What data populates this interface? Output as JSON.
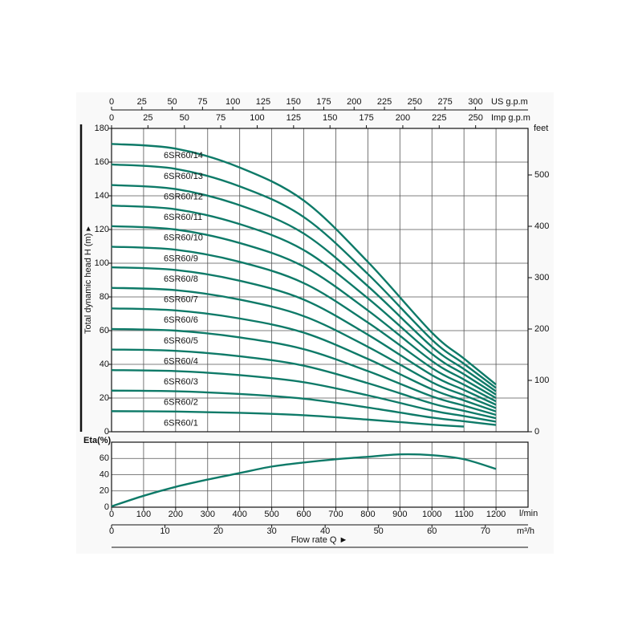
{
  "chart_data": [
    {
      "type": "line",
      "ylabel": "Total dynamic head H (m) ▸",
      "ylim": [
        0,
        180
      ],
      "yticks": [
        0,
        20,
        40,
        60,
        80,
        100,
        120,
        140,
        160,
        180
      ],
      "y2label": "feet",
      "y2lim": [
        0,
        590.6
      ],
      "y2ticks": [
        0,
        100,
        200,
        300,
        400,
        500
      ],
      "xlim": [
        0,
        1300
      ],
      "x2label": "US g.p.m",
      "x2lim": [
        0,
        343.4
      ],
      "x2ticks": [
        0,
        25,
        50,
        75,
        100,
        125,
        150,
        175,
        200,
        225,
        250,
        275,
        300
      ],
      "x3label": "Imp g.p.m",
      "x3lim": [
        0,
        286
      ],
      "x3ticks": [
        0,
        25,
        50,
        75,
        100,
        125,
        150,
        175,
        200,
        225,
        250
      ],
      "grid": true,
      "x": [
        0,
        200,
        400,
        600,
        800,
        1000,
        1100,
        1200
      ],
      "series": [
        {
          "name": "6SR60/1",
          "color": "#0e7a68",
          "values": [
            12.2,
            12,
            11.2,
            9.8,
            7.2,
            4.2,
            3.1,
            null
          ]
        },
        {
          "name": "6SR60/2",
          "color": "#0e7a68",
          "values": [
            24.4,
            24,
            22.4,
            19.6,
            14.4,
            8.4,
            6.2,
            4
          ]
        },
        {
          "name": "6SR60/3",
          "color": "#0e7a68",
          "values": [
            36.6,
            36,
            33.6,
            29.4,
            21.6,
            12.6,
            9.3,
            6
          ]
        },
        {
          "name": "6SR60/4",
          "color": "#0e7a68",
          "values": [
            48.8,
            48,
            44.8,
            39.2,
            28.8,
            16.8,
            12.4,
            8
          ]
        },
        {
          "name": "6SR60/5",
          "color": "#0e7a68",
          "values": [
            61,
            60,
            56,
            49,
            36,
            21,
            15.5,
            10
          ]
        },
        {
          "name": "6SR60/6",
          "color": "#0e7a68",
          "values": [
            73.2,
            72,
            67.2,
            58.8,
            43.2,
            25.2,
            18.6,
            12
          ]
        },
        {
          "name": "6SR60/7",
          "color": "#0e7a68",
          "values": [
            85.4,
            84,
            78.4,
            68.6,
            50.4,
            29.4,
            21.7,
            14
          ]
        },
        {
          "name": "6SR60/8",
          "color": "#0e7a68",
          "values": [
            97.6,
            96,
            89.6,
            78.4,
            57.6,
            33.6,
            24.8,
            16
          ]
        },
        {
          "name": "6SR60/9",
          "color": "#0e7a68",
          "values": [
            109.8,
            108,
            100.8,
            88.2,
            64.8,
            37.8,
            27.9,
            18
          ]
        },
        {
          "name": "6SR60/10",
          "color": "#0e7a68",
          "values": [
            122,
            120,
            112,
            98,
            72,
            42,
            31,
            20
          ]
        },
        {
          "name": "6SR60/11",
          "color": "#0e7a68",
          "values": [
            134.2,
            132,
            123.2,
            107.8,
            79.2,
            46.2,
            34.1,
            22
          ]
        },
        {
          "name": "6SR60/12",
          "color": "#0e7a68",
          "values": [
            146.4,
            144,
            134.4,
            117.6,
            86.4,
            50.4,
            37.2,
            24
          ]
        },
        {
          "name": "6SR60/13",
          "color": "#0e7a68",
          "values": [
            158.6,
            156,
            145.6,
            127.4,
            93.6,
            54.6,
            40.3,
            26
          ]
        },
        {
          "name": "6SR60/14",
          "color": "#0e7a68",
          "values": [
            170.8,
            168,
            156.8,
            137.2,
            100.8,
            58.8,
            43.4,
            28
          ]
        }
      ]
    },
    {
      "type": "line",
      "ylabel": "Eta(%)",
      "ylim": [
        0,
        80
      ],
      "yticks": [
        0,
        20,
        40,
        60
      ],
      "xlim": [
        0,
        1300
      ],
      "xticks": [
        0,
        100,
        200,
        300,
        400,
        500,
        600,
        700,
        800,
        900,
        1000,
        1100,
        1200
      ],
      "xunit": "l/min",
      "x2label": "m³/h",
      "x2lim": [
        0,
        78
      ],
      "x2ticks": [
        0,
        10,
        20,
        30,
        40,
        50,
        60,
        70
      ],
      "xlabel": "Flow rate Q ►",
      "grid": true,
      "color": "#0e7a68",
      "x": [
        0,
        100,
        200,
        300,
        400,
        500,
        600,
        700,
        800,
        900,
        1000,
        1100,
        1200
      ],
      "values": [
        1,
        14,
        25,
        34,
        42,
        50,
        55,
        59,
        62,
        65,
        64,
        59,
        47
      ]
    }
  ]
}
